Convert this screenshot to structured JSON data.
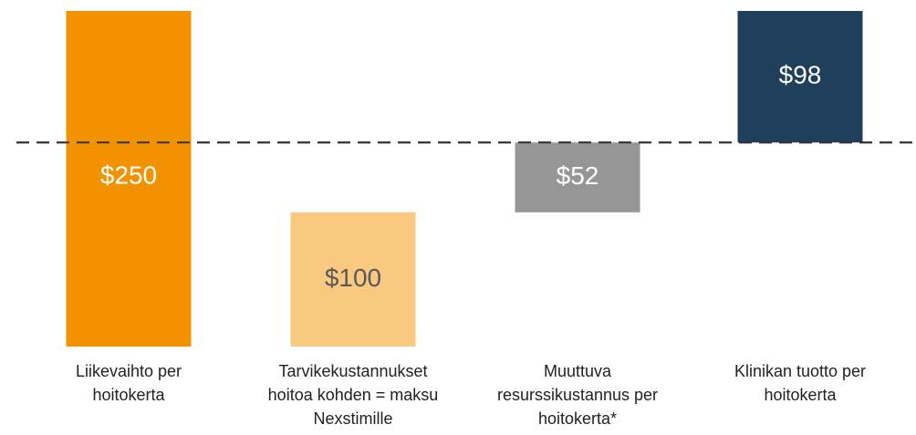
{
  "chart_data": {
    "type": "waterfall",
    "categories": [
      "Liikevaihto per hoitokerta",
      "Tarvikekustannukset hoitoa kohden = maksu Nexstimille",
      "Muuttuva resurssikustannus per hoitokerta*",
      "Klinikan tuotto per hoitokerta"
    ],
    "values": [
      250,
      100,
      52,
      98
    ],
    "value_labels": [
      "$250",
      "$100",
      "$52",
      "$98"
    ],
    "colors": [
      "#f39200",
      "#f8c97f",
      "#969696",
      "#1f3f5b"
    ],
    "label_colors": [
      "#ffffff",
      "#595959",
      "#ffffff",
      "#ffffff"
    ]
  }
}
